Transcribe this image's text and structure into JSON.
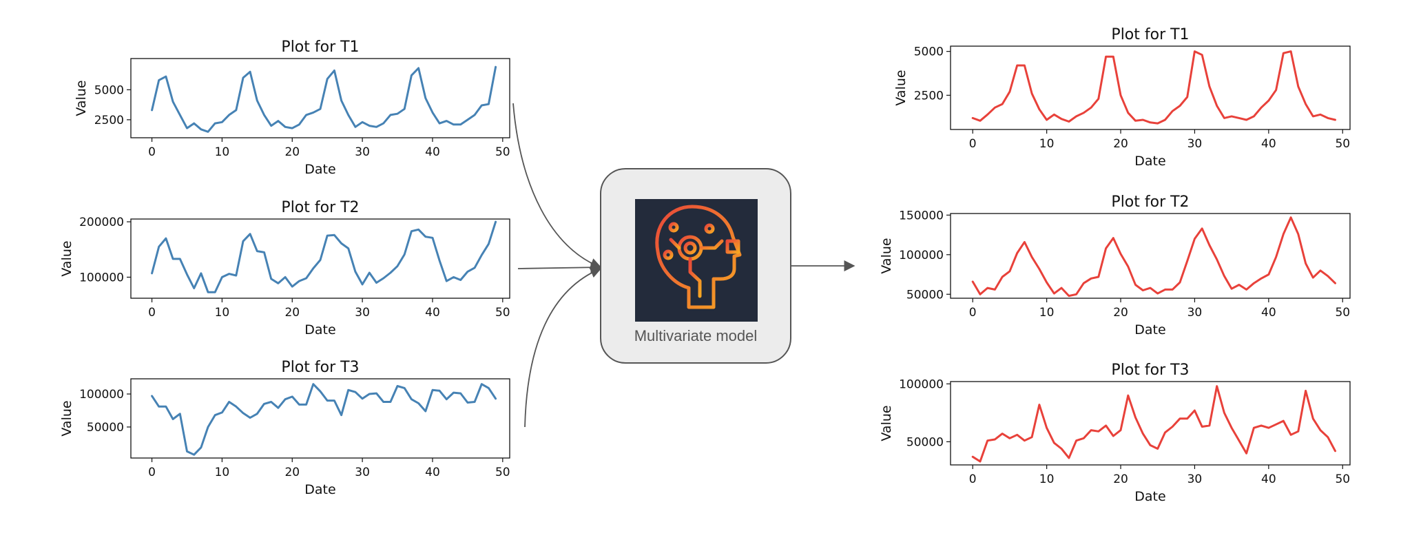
{
  "model": {
    "label": "Multivariate model",
    "icon": "ai-head-circuit-icon",
    "colors": {
      "box_fill": "#ececec",
      "icon_bg": "#232b3b",
      "icon_grad_start": "#e8483a",
      "icon_grad_end": "#f6a623"
    }
  },
  "colors": {
    "input_series": "#4682b4",
    "output_series": "#e8413a",
    "arrow": "#555555"
  },
  "chart_data": [
    {
      "id": "in-t1",
      "type": "line",
      "title": "Plot for T1",
      "xlabel": "Date",
      "ylabel": "Value",
      "xlim": [
        -3,
        51
      ],
      "ylim": [
        1000,
        7600
      ],
      "xticks": [
        0,
        10,
        20,
        30,
        40,
        50
      ],
      "yticks": [
        2500,
        5000
      ],
      "xticklabels": [
        "0",
        "10",
        "20",
        "30",
        "40",
        "50"
      ],
      "yticklabels": [
        "2500",
        "5000"
      ],
      "x": [
        0,
        1,
        2,
        3,
        4,
        5,
        6,
        7,
        8,
        9,
        10,
        11,
        12,
        13,
        14,
        15,
        16,
        17,
        18,
        19,
        20,
        21,
        22,
        23,
        24,
        25,
        26,
        27,
        28,
        29,
        30,
        31,
        32,
        33,
        34,
        35,
        36,
        37,
        38,
        39,
        40,
        41,
        42,
        43,
        44,
        45,
        46,
        47,
        48,
        49
      ],
      "series": [
        {
          "values": [
            3300,
            5800,
            6100,
            4000,
            2900,
            1800,
            2200,
            1700,
            1500,
            2200,
            2300,
            2900,
            3300,
            6000,
            6500,
            4100,
            2900,
            2000,
            2400,
            1900,
            1800,
            2100,
            2900,
            3100,
            3400,
            5900,
            6600,
            4100,
            2900,
            1900,
            2300,
            2000,
            1900,
            2200,
            2900,
            3000,
            3400,
            6200,
            6800,
            4300,
            3100,
            2200,
            2400,
            2100,
            2100,
            2500,
            2900,
            3700,
            3800,
            6900
          ]
        }
      ]
    },
    {
      "id": "in-t2",
      "type": "line",
      "title": "Plot for T2",
      "xlabel": "Date",
      "ylabel": "Value",
      "xlim": [
        -3,
        51
      ],
      "ylim": [
        62000,
        205000
      ],
      "xticks": [
        0,
        10,
        20,
        30,
        40,
        50
      ],
      "yticks": [
        100000,
        200000
      ],
      "xticklabels": [
        "0",
        "10",
        "20",
        "30",
        "40",
        "50"
      ],
      "yticklabels": [
        "100000",
        "200000"
      ],
      "x": [
        0,
        1,
        2,
        3,
        4,
        5,
        6,
        7,
        8,
        9,
        10,
        11,
        12,
        13,
        14,
        15,
        16,
        17,
        18,
        19,
        20,
        21,
        22,
        23,
        24,
        25,
        26,
        27,
        28,
        29,
        30,
        31,
        32,
        33,
        34,
        35,
        36,
        37,
        38,
        39,
        40,
        41,
        42,
        43,
        44,
        45,
        46,
        47,
        48,
        49
      ],
      "series": [
        {
          "values": [
            107000,
            155000,
            170000,
            133000,
            133000,
            105000,
            80000,
            107000,
            73000,
            73000,
            100000,
            106000,
            103000,
            165000,
            178000,
            147000,
            145000,
            97000,
            89000,
            100000,
            83000,
            93000,
            98000,
            116000,
            131000,
            175000,
            176000,
            161000,
            152000,
            110000,
            87000,
            108000,
            90000,
            98000,
            108000,
            120000,
            141000,
            183000,
            186000,
            173000,
            171000,
            130000,
            93000,
            100000,
            95000,
            110000,
            117000,
            140000,
            160000,
            200000
          ]
        }
      ]
    },
    {
      "id": "in-t3",
      "type": "line",
      "title": "Plot for T3",
      "xlabel": "Date",
      "ylabel": "Value",
      "xlim": [
        -3,
        51
      ],
      "ylim": [
        3000,
        123000
      ],
      "xticks": [
        0,
        10,
        20,
        30,
        40,
        50
      ],
      "yticks": [
        50000,
        100000
      ],
      "xticklabels": [
        "0",
        "10",
        "20",
        "30",
        "40",
        "50"
      ],
      "yticklabels": [
        "50000",
        "100000"
      ],
      "x": [
        0,
        1,
        2,
        3,
        4,
        5,
        6,
        7,
        8,
        9,
        10,
        11,
        12,
        13,
        14,
        15,
        16,
        17,
        18,
        19,
        20,
        21,
        22,
        23,
        24,
        25,
        26,
        27,
        28,
        29,
        30,
        31,
        32,
        33,
        34,
        35,
        36,
        37,
        38,
        39,
        40,
        41,
        42,
        43,
        44,
        45,
        46,
        47,
        48,
        49
      ],
      "series": [
        {
          "values": [
            97000,
            81000,
            81000,
            62000,
            70000,
            13000,
            8000,
            19000,
            50000,
            68000,
            72000,
            88000,
            81000,
            71000,
            64000,
            70000,
            85000,
            88000,
            79000,
            92000,
            96000,
            84000,
            84000,
            115000,
            104000,
            90000,
            90000,
            68000,
            106000,
            103000,
            93000,
            100000,
            101000,
            88000,
            88000,
            112000,
            109000,
            92000,
            86000,
            74000,
            106000,
            105000,
            92000,
            102000,
            101000,
            87000,
            88000,
            115000,
            109000,
            93000
          ]
        }
      ]
    },
    {
      "id": "out-t1",
      "type": "line",
      "title": "Plot for T1",
      "xlabel": "Date",
      "ylabel": "Value",
      "xlim": [
        -3,
        51
      ],
      "ylim": [
        550,
        5300
      ],
      "xticks": [
        0,
        10,
        20,
        30,
        40,
        50
      ],
      "yticks": [
        2500,
        5000
      ],
      "xticklabels": [
        "0",
        "10",
        "20",
        "30",
        "40",
        "50"
      ],
      "yticklabels": [
        "2500",
        "5000"
      ],
      "x": [
        0,
        1,
        2,
        3,
        4,
        5,
        6,
        7,
        8,
        9,
        10,
        11,
        12,
        13,
        14,
        15,
        16,
        17,
        18,
        19,
        20,
        21,
        22,
        23,
        24,
        25,
        26,
        27,
        28,
        29,
        30,
        31,
        32,
        33,
        34,
        35,
        36,
        37,
        38,
        39,
        40,
        41,
        42,
        43,
        44,
        45,
        46,
        47,
        48,
        49
      ],
      "series": [
        {
          "values": [
            1200,
            1050,
            1400,
            1800,
            2000,
            2700,
            4200,
            4200,
            2600,
            1700,
            1100,
            1400,
            1150,
            1000,
            1300,
            1500,
            1800,
            2300,
            4700,
            4700,
            2500,
            1500,
            1050,
            1100,
            950,
            900,
            1100,
            1600,
            1900,
            2400,
            5000,
            4800,
            3000,
            1900,
            1200,
            1300,
            1200,
            1100,
            1300,
            1800,
            2200,
            2800,
            4900,
            5000,
            3000,
            2000,
            1300,
            1400,
            1200,
            1100
          ]
        }
      ]
    },
    {
      "id": "out-t2",
      "type": "line",
      "title": "Plot for T2",
      "xlabel": "Date",
      "ylabel": "Value",
      "xlim": [
        -3,
        51
      ],
      "ylim": [
        45000,
        152000
      ],
      "xticks": [
        0,
        10,
        20,
        30,
        40,
        50
      ],
      "yticks": [
        50000,
        100000,
        150000
      ],
      "xticklabels": [
        "0",
        "10",
        "20",
        "30",
        "40",
        "50"
      ],
      "yticklabels": [
        "50000",
        "100000",
        "150000"
      ],
      "x": [
        0,
        1,
        2,
        3,
        4,
        5,
        6,
        7,
        8,
        9,
        10,
        11,
        12,
        13,
        14,
        15,
        16,
        17,
        18,
        19,
        20,
        21,
        22,
        23,
        24,
        25,
        26,
        27,
        28,
        29,
        30,
        31,
        32,
        33,
        34,
        35,
        36,
        37,
        38,
        39,
        40,
        41,
        42,
        43,
        44,
        45,
        46,
        47,
        48,
        49
      ],
      "series": [
        {
          "values": [
            66000,
            50000,
            58000,
            56000,
            72000,
            79000,
            102000,
            116000,
            97000,
            82000,
            65000,
            51000,
            58000,
            48000,
            50000,
            64000,
            70000,
            72000,
            108000,
            121000,
            101000,
            85000,
            62000,
            55000,
            58000,
            51000,
            56000,
            56000,
            65000,
            92000,
            120000,
            133000,
            112000,
            94000,
            73000,
            57000,
            62000,
            56000,
            64000,
            70000,
            75000,
            97000,
            126000,
            147000,
            126000,
            89000,
            71000,
            80000,
            73000,
            64000
          ]
        }
      ]
    },
    {
      "id": "out-t3",
      "type": "line",
      "title": "Plot for T3",
      "xlabel": "Date",
      "ylabel": "Value",
      "xlim": [
        -3,
        51
      ],
      "ylim": [
        30000,
        102000
      ],
      "xticks": [
        0,
        10,
        20,
        30,
        40,
        50
      ],
      "yticks": [
        50000,
        100000
      ],
      "xticklabels": [
        "0",
        "10",
        "20",
        "30",
        "40",
        "50"
      ],
      "yticklabels": [
        "50000",
        "100000"
      ],
      "x": [
        0,
        1,
        2,
        3,
        4,
        5,
        6,
        7,
        8,
        9,
        10,
        11,
        12,
        13,
        14,
        15,
        16,
        17,
        18,
        19,
        20,
        21,
        22,
        23,
        24,
        25,
        26,
        27,
        28,
        29,
        30,
        31,
        32,
        33,
        34,
        35,
        36,
        37,
        38,
        39,
        40,
        41,
        42,
        43,
        44,
        45,
        46,
        47,
        48,
        49
      ],
      "series": [
        {
          "values": [
            37000,
            33000,
            51000,
            52000,
            57000,
            53000,
            56000,
            51000,
            54000,
            82000,
            62000,
            49000,
            44000,
            36000,
            51000,
            53000,
            60000,
            59000,
            64000,
            55000,
            60000,
            90000,
            71000,
            57000,
            47000,
            44000,
            58000,
            63000,
            70000,
            70000,
            77000,
            63000,
            64000,
            98000,
            75000,
            62000,
            51000,
            40000,
            62000,
            64000,
            62000,
            65000,
            68000,
            56000,
            59000,
            94000,
            70000,
            60000,
            54000,
            42000
          ]
        }
      ]
    }
  ]
}
